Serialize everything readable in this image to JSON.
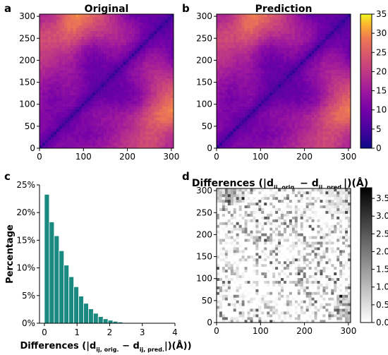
{
  "panels": {
    "a": "a",
    "b": "b",
    "c": "c",
    "d": "d"
  },
  "chart_data": [
    {
      "type": "heatmap",
      "panel": "a",
      "title": "Original",
      "x_ticks": [
        "0",
        "100",
        "200",
        "300"
      ],
      "y_ticks": [
        "0",
        "50",
        "100",
        "150",
        "200",
        "250",
        "300"
      ],
      "x_range": [
        0,
        305
      ],
      "y_range": [
        0,
        305
      ],
      "colormap": "plasma",
      "color_range": [
        0,
        35
      ]
    },
    {
      "type": "heatmap",
      "panel": "b",
      "title": "Prediction",
      "x_ticks": [
        "0",
        "100",
        "200",
        "300"
      ],
      "y_ticks": [
        "0",
        "50",
        "100",
        "150",
        "200",
        "250",
        "300"
      ],
      "x_range": [
        0,
        305
      ],
      "y_range": [
        0,
        305
      ],
      "colormap": "plasma",
      "colorbar_ticks": [
        "0",
        "5",
        "10",
        "15",
        "20",
        "25",
        "30",
        "35"
      ],
      "color_range": [
        0,
        35
      ]
    },
    {
      "type": "bar",
      "panel": "c",
      "ylabel": "Percentage",
      "xlabel_main": "Differences (|d",
      "xlabel_sub1": "ij, orig.",
      "xlabel_mid": " − d",
      "xlabel_sub2": "ij, pred.",
      "xlabel_end": "|)(Å))",
      "x_ticks": [
        "0",
        "1",
        "2",
        "3",
        "4"
      ],
      "y_ticks": [
        "0%",
        "5%",
        "10%",
        "15%",
        "20%",
        "25%"
      ],
      "xlim": [
        -0.15,
        4
      ],
      "ylim": [
        0,
        25
      ],
      "bar_width": 0.15,
      "bar_color": "#1a8a80",
      "x": [
        0.075,
        0.225,
        0.375,
        0.525,
        0.675,
        0.825,
        0.975,
        1.125,
        1.275,
        1.425,
        1.575,
        1.725,
        1.875,
        2.025,
        2.175,
        2.325,
        2.475,
        2.625,
        2.775
      ],
      "values": [
        23.3,
        18.3,
        15.8,
        13.1,
        10.5,
        8.4,
        6.6,
        4.9,
        3.6,
        2.6,
        1.8,
        1.2,
        0.8,
        0.55,
        0.35,
        0.22,
        0.12,
        0.07,
        0.04
      ]
    },
    {
      "type": "heatmap",
      "panel": "d",
      "title_main": "Differences (|d",
      "title_sub1": "ij, orig.",
      "title_mid": " − d",
      "title_sub2": "ij, pred.",
      "title_end": "|)(Å)",
      "x_ticks": [
        "0",
        "100",
        "200",
        "300"
      ],
      "y_ticks": [
        "0",
        "50",
        "100",
        "150",
        "200",
        "250",
        "300"
      ],
      "x_range": [
        0,
        305
      ],
      "y_range": [
        0,
        305
      ],
      "colormap": "gray_r",
      "colorbar_ticks": [
        "0.0",
        "0.5",
        "1.0",
        "1.5",
        "2.0",
        "2.5",
        "3.0",
        "3.5"
      ],
      "color_range": [
        0,
        3.8
      ]
    }
  ]
}
